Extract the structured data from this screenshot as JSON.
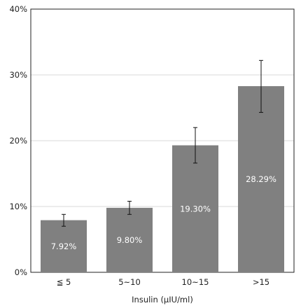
{
  "chart_data": {
    "type": "bar",
    "categories": [
      "≦ 5",
      "5~10",
      "10~15",
      ">15"
    ],
    "values": [
      7.92,
      9.8,
      19.3,
      28.29
    ],
    "value_labels": [
      "7.92%",
      "9.80%",
      "19.30%",
      "28.29%"
    ],
    "error_low": [
      7.0,
      8.8,
      16.6,
      24.3
    ],
    "error_high": [
      8.8,
      10.8,
      22.0,
      32.2
    ],
    "xlabel": "Insulin (μIU/ml)",
    "ylabel": "",
    "ylim": [
      0,
      40
    ],
    "yticks": [
      0,
      10,
      20,
      30,
      40
    ],
    "ytick_labels": [
      "0%",
      "10%",
      "20%",
      "30%",
      "40%"
    ],
    "grid": true,
    "bar_color": "#808080",
    "grid_color": "#d9d9d9",
    "axis_color": "#222222"
  }
}
